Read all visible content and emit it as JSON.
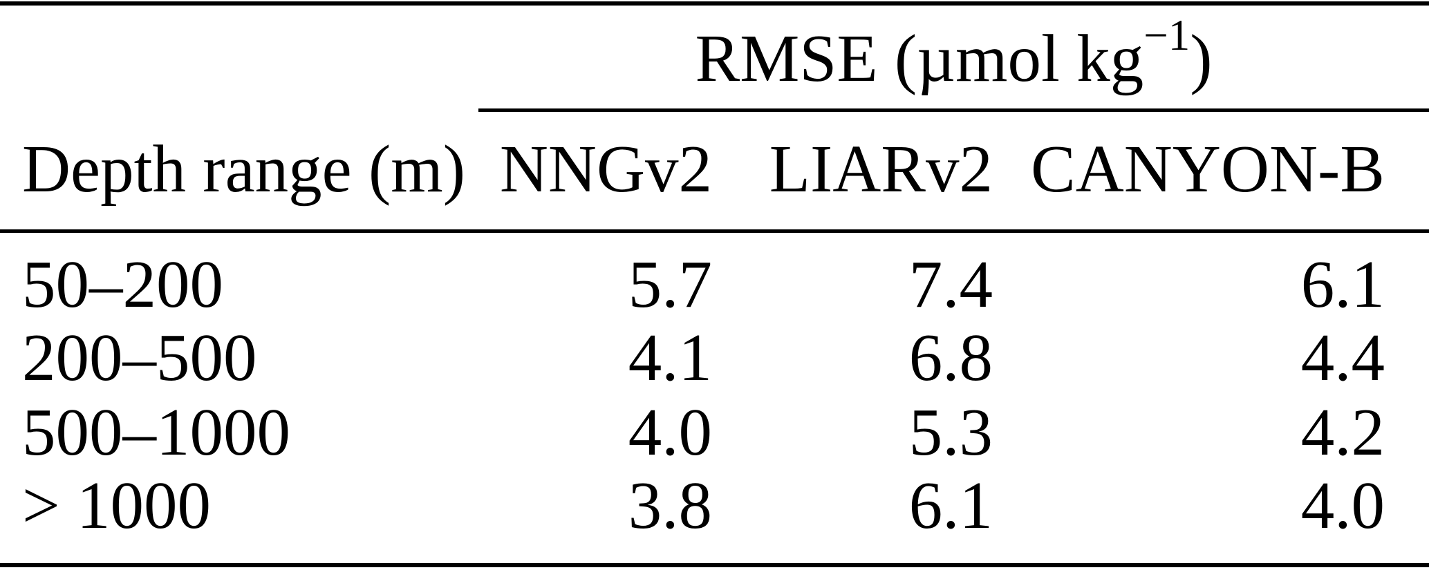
{
  "table": {
    "spanner": {
      "prefix": "RMSE (µmol kg",
      "superscript": "−1",
      "suffix": ")"
    },
    "columns": [
      "Depth range (m)",
      "NNGv2",
      "LIARv2",
      "CANYON-B"
    ],
    "rows": [
      {
        "depth": "50–200",
        "nngv2": "5.7",
        "liarv2": "7.4",
        "canyonb": "6.1"
      },
      {
        "depth": "200–500",
        "nngv2": "4.1",
        "liarv2": "6.8",
        "canyonb": "4.4"
      },
      {
        "depth": "500–1000",
        "nngv2": "4.0",
        "liarv2": "5.3",
        "canyonb": "4.2"
      },
      {
        "depth": "> 1000",
        "nngv2": "3.8",
        "liarv2": "6.1",
        "canyonb": "4.0"
      }
    ],
    "colors": {
      "text": "#000000",
      "background": "#ffffff",
      "rule": "#000000"
    }
  },
  "chart_data": {
    "type": "table",
    "title": "RMSE (µmol kg⁻¹)",
    "columns": [
      "Depth range (m)",
      "NNGv2",
      "LIARv2",
      "CANYON-B"
    ],
    "rows": [
      [
        "50–200",
        5.7,
        7.4,
        6.1
      ],
      [
        "200–500",
        4.1,
        6.8,
        4.4
      ],
      [
        "500–1000",
        4.0,
        5.3,
        4.2
      ],
      [
        "> 1000",
        3.8,
        6.1,
        4.0
      ]
    ]
  }
}
